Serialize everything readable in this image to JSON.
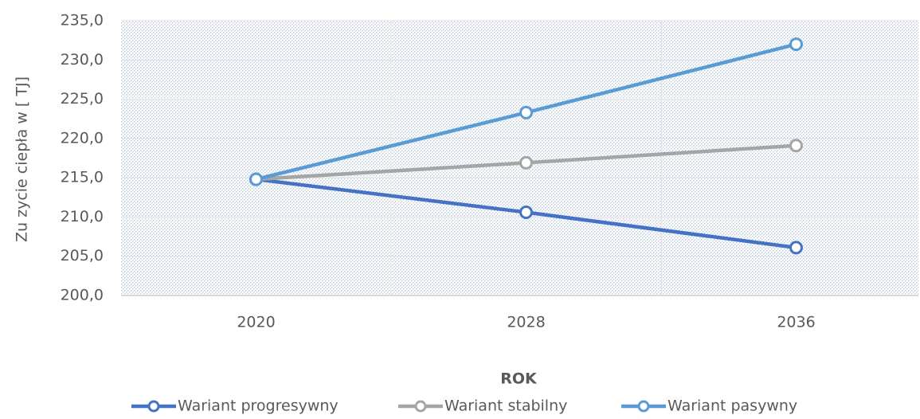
{
  "chart_data": {
    "type": "line",
    "y_label": "Zu zycie ciepła w [ TJ]",
    "x_label": "ROK",
    "categories": [
      "2020",
      "2028",
      "2036"
    ],
    "series": [
      {
        "name": "Wariant progresywny",
        "color": "#4472c4",
        "values": [
          214.8,
          210.6,
          206.1
        ]
      },
      {
        "name": "Wariant stabilny",
        "color": "#a5a5a5",
        "values": [
          214.8,
          216.9,
          219.1
        ]
      },
      {
        "name": "Wariant pasywny",
        "color": "#5b9bd5",
        "values": [
          214.8,
          223.3,
          232.0
        ]
      }
    ],
    "ylim": [
      200,
      235
    ],
    "yticks": [
      {
        "value": 200,
        "label": "200,0"
      },
      {
        "value": 205,
        "label": "205,0"
      },
      {
        "value": 210,
        "label": "210,0"
      },
      {
        "value": 215,
        "label": "215,0"
      },
      {
        "value": 220,
        "label": "220,0"
      },
      {
        "value": 225,
        "label": "225,0"
      },
      {
        "value": 230,
        "label": "230,0"
      },
      {
        "value": 235,
        "label": "235,0"
      }
    ],
    "grid": true
  }
}
